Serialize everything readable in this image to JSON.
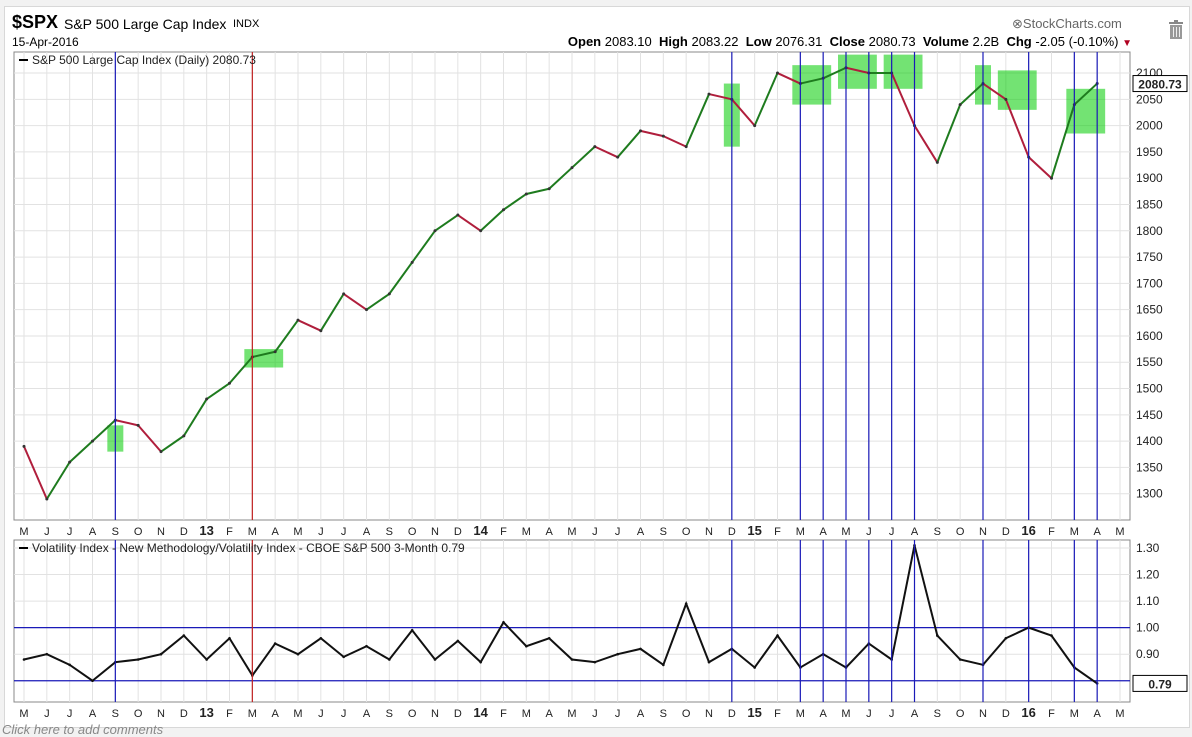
{
  "header": {
    "ticker": "$SPX",
    "name": "S&P 500 Large Cap Index",
    "exchange": "INDX",
    "date": "15-Apr-2016",
    "brand": "StockCharts.com",
    "open_label": "Open",
    "open": "2083.10",
    "high_label": "High",
    "high": "2083.22",
    "low_label": "Low",
    "low": "2076.31",
    "close_label": "Close",
    "close": "2080.73",
    "volume_label": "Volume",
    "volume": "2.2B",
    "chg_label": "Chg",
    "chg": "-2.05 (-0.10%)"
  },
  "footer": {
    "text": "Click here to add comments"
  },
  "colors": {
    "up": "#1e7b1e",
    "down": "#b01e3c",
    "vline_blue": "#1a1ab8",
    "vline_red": "#c02020",
    "highlight": "#00cc00"
  },
  "chart_data": [
    {
      "type": "line",
      "legend": "S&P 500 Large Cap Index (Daily) 2080.73",
      "last_value_label": "2080.73",
      "ylim": [
        1250,
        2140
      ],
      "yticks": [
        1300,
        1350,
        1400,
        1450,
        1500,
        1550,
        1600,
        1650,
        1700,
        1750,
        1800,
        1850,
        1900,
        1950,
        2000,
        2050,
        2100
      ],
      "x_tick_labels": [
        "M",
        "J",
        "J",
        "A",
        "S",
        "O",
        "N",
        "D",
        "13",
        "F",
        "M",
        "A",
        "M",
        "J",
        "J",
        "A",
        "S",
        "O",
        "N",
        "D",
        "14",
        "F",
        "M",
        "A",
        "M",
        "J",
        "J",
        "A",
        "S",
        "O",
        "N",
        "D",
        "15",
        "F",
        "M",
        "A",
        "M",
        "J",
        "J",
        "A",
        "S",
        "O",
        "N",
        "D",
        "16",
        "F",
        "M",
        "A",
        "M"
      ],
      "x": [
        "2012-05",
        "2012-06",
        "2012-07",
        "2012-08",
        "2012-09",
        "2012-10",
        "2012-11",
        "2012-12",
        "2013-01",
        "2013-02",
        "2013-03",
        "2013-04",
        "2013-05",
        "2013-06",
        "2013-07",
        "2013-08",
        "2013-09",
        "2013-10",
        "2013-11",
        "2013-12",
        "2014-01",
        "2014-02",
        "2014-03",
        "2014-04",
        "2014-05",
        "2014-06",
        "2014-07",
        "2014-08",
        "2014-09",
        "2014-10",
        "2014-11",
        "2014-12",
        "2015-01",
        "2015-02",
        "2015-03",
        "2015-04",
        "2015-05",
        "2015-06",
        "2015-07",
        "2015-08",
        "2015-09",
        "2015-10",
        "2015-11",
        "2015-12",
        "2016-01",
        "2016-02",
        "2016-03",
        "2016-04"
      ],
      "values": [
        1390,
        1290,
        1360,
        1400,
        1440,
        1430,
        1380,
        1410,
        1480,
        1510,
        1560,
        1570,
        1630,
        1610,
        1680,
        1650,
        1680,
        1740,
        1800,
        1830,
        1800,
        1840,
        1870,
        1880,
        1920,
        1960,
        1940,
        1990,
        1980,
        1960,
        2060,
        2050,
        2000,
        2100,
        2080,
        2090,
        2110,
        2100,
        2100,
        2000,
        1930,
        2040,
        2080,
        2050,
        1940,
        1900,
        2040,
        2080
      ],
      "highlight_boxes": [
        {
          "x0": "2012-09",
          "x1": "2012-09",
          "y0": 1380,
          "y1": 1430
        },
        {
          "x0": "2013-03",
          "x1": "2013-04",
          "y0": 1540,
          "y1": 1575
        },
        {
          "x0": "2014-12",
          "x1": "2014-12",
          "y0": 1960,
          "y1": 2080
        },
        {
          "x0": "2015-03",
          "x1": "2015-04",
          "y0": 2040,
          "y1": 2115
        },
        {
          "x0": "2015-05",
          "x1": "2015-06",
          "y0": 2070,
          "y1": 2135
        },
        {
          "x0": "2015-07",
          "x1": "2015-08",
          "y0": 2070,
          "y1": 2135
        },
        {
          "x0": "2015-11",
          "x1": "2015-11",
          "y0": 2040,
          "y1": 2115
        },
        {
          "x0": "2015-12",
          "x1": "2016-01",
          "y0": 2030,
          "y1": 2105
        },
        {
          "x0": "2016-03",
          "x1": "2016-04",
          "y0": 1985,
          "y1": 2070
        }
      ]
    },
    {
      "type": "line",
      "legend": "Volatility Index - New Methodology/Volatility Index - CBOE S&P 500 3-Month 0.79",
      "last_value_label": "0.79",
      "ylim": [
        0.72,
        1.33
      ],
      "yticks": [
        0.9,
        1.0,
        1.1,
        1.2,
        1.3
      ],
      "ytick_labels": [
        "0.90",
        "1.00",
        "1.10",
        "1.20",
        "1.30"
      ],
      "hlines": [
        1.0,
        0.8
      ],
      "x_tick_labels": [
        "M",
        "J",
        "J",
        "A",
        "S",
        "O",
        "N",
        "D",
        "13",
        "F",
        "M",
        "A",
        "M",
        "J",
        "J",
        "A",
        "S",
        "O",
        "N",
        "D",
        "14",
        "F",
        "M",
        "A",
        "M",
        "J",
        "J",
        "A",
        "S",
        "O",
        "N",
        "D",
        "15",
        "F",
        "M",
        "A",
        "M",
        "J",
        "J",
        "A",
        "S",
        "O",
        "N",
        "D",
        "16",
        "F",
        "M",
        "A",
        "M"
      ],
      "x": [
        "2012-05",
        "2012-06",
        "2012-07",
        "2012-08",
        "2012-09",
        "2012-10",
        "2012-11",
        "2012-12",
        "2013-01",
        "2013-02",
        "2013-03",
        "2013-04",
        "2013-05",
        "2013-06",
        "2013-07",
        "2013-08",
        "2013-09",
        "2013-10",
        "2013-11",
        "2013-12",
        "2014-01",
        "2014-02",
        "2014-03",
        "2014-04",
        "2014-05",
        "2014-06",
        "2014-07",
        "2014-08",
        "2014-09",
        "2014-10",
        "2014-11",
        "2014-12",
        "2015-01",
        "2015-02",
        "2015-03",
        "2015-04",
        "2015-05",
        "2015-06",
        "2015-07",
        "2015-08",
        "2015-09",
        "2015-10",
        "2015-11",
        "2015-12",
        "2016-01",
        "2016-02",
        "2016-03",
        "2016-04"
      ],
      "values": [
        0.88,
        0.9,
        0.86,
        0.8,
        0.87,
        0.88,
        0.9,
        0.97,
        0.88,
        0.96,
        0.82,
        0.94,
        0.9,
        0.96,
        0.89,
        0.93,
        0.88,
        0.99,
        0.88,
        0.95,
        0.87,
        1.02,
        0.93,
        0.96,
        0.88,
        0.87,
        0.9,
        0.92,
        0.86,
        1.09,
        0.87,
        0.92,
        0.85,
        0.97,
        0.85,
        0.9,
        0.85,
        0.94,
        0.88,
        1.31,
        0.97,
        0.88,
        0.86,
        0.96,
        1.0,
        0.97,
        0.85,
        0.79
      ],
      "vlines_blue": [
        "2012-09",
        "2014-12",
        "2015-03",
        "2015-04",
        "2015-05",
        "2015-06",
        "2015-07",
        "2015-08",
        "2015-11",
        "2016-01",
        "2016-03",
        "2016-04"
      ],
      "vlines_red": [
        "2013-03"
      ]
    }
  ]
}
